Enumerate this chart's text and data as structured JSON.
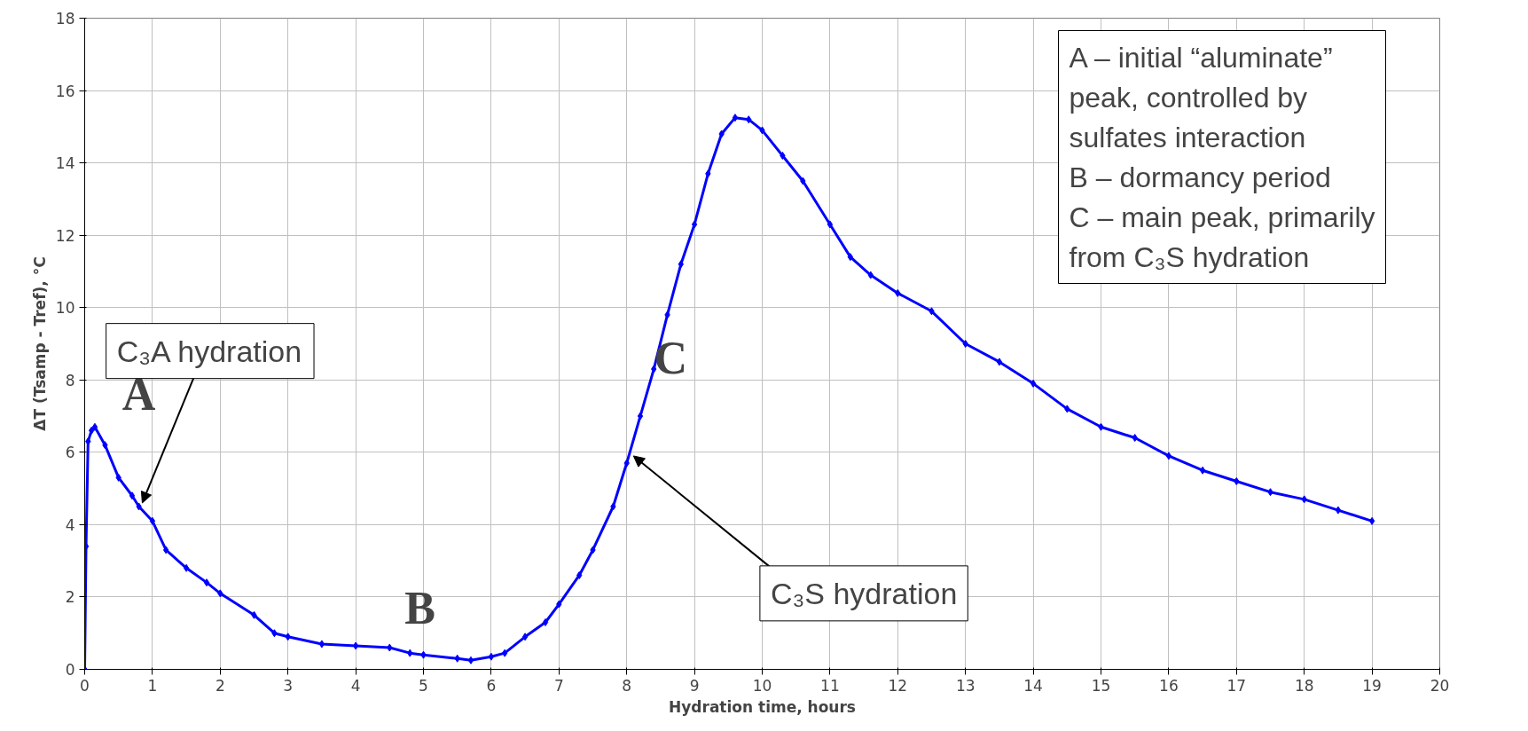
{
  "chart_data": {
    "type": "line",
    "xlabel": "Hydration time, hours",
    "ylabel": "ΔT (Tsamp - Tref), °C",
    "series": [
      {
        "color": "#0000ff",
        "x": [
          0,
          0.02,
          0.05,
          0.1,
          0.15,
          0.3,
          0.5,
          0.7,
          0.8,
          1.0,
          1.2,
          1.5,
          1.8,
          2.0,
          2.5,
          2.8,
          3.0,
          3.5,
          4.0,
          4.5,
          4.8,
          5.0,
          5.5,
          5.7,
          6.0,
          6.2,
          6.5,
          6.8,
          7.0,
          7.3,
          7.5,
          7.8,
          8.0,
          8.2,
          8.4,
          8.6,
          8.8,
          9.0,
          9.2,
          9.4,
          9.6,
          9.8,
          10.0,
          10.3,
          10.6,
          11.0,
          11.3,
          11.6,
          12.0,
          12.5,
          13.0,
          13.5,
          14.0,
          14.5,
          15.0,
          15.5,
          16.0,
          16.5,
          17.0,
          17.5,
          18.0,
          18.5,
          19.0
        ],
        "values": [
          0,
          3.4,
          6.3,
          6.6,
          6.7,
          6.2,
          5.3,
          4.8,
          4.5,
          4.1,
          3.3,
          2.8,
          2.4,
          2.1,
          1.5,
          1.0,
          0.9,
          0.7,
          0.65,
          0.6,
          0.45,
          0.4,
          0.3,
          0.25,
          0.35,
          0.45,
          0.9,
          1.3,
          1.8,
          2.6,
          3.3,
          4.5,
          5.7,
          7.0,
          8.3,
          9.8,
          11.2,
          12.3,
          13.7,
          14.8,
          15.25,
          15.2,
          14.9,
          14.2,
          13.5,
          12.3,
          11.4,
          10.9,
          10.4,
          9.9,
          9.0,
          8.5,
          7.9,
          7.2,
          6.7,
          6.4,
          5.9,
          5.5,
          5.2,
          4.9,
          4.7,
          4.4,
          4.1
        ]
      }
    ],
    "xlim": [
      0,
      20
    ],
    "xticks": [
      0,
      1,
      2,
      3,
      4,
      5,
      6,
      7,
      8,
      9,
      10,
      11,
      12,
      13,
      14,
      15,
      16,
      17,
      18,
      19,
      20
    ],
    "ylim": [
      0,
      18
    ],
    "yticks": [
      0,
      2,
      4,
      6,
      8,
      10,
      12,
      14,
      16,
      18
    ],
    "grid": true,
    "marker": "diamond",
    "line_style": "solid",
    "annotations": [
      "A",
      "B",
      "C",
      {
        "text": "C₃A hydration",
        "x": 0.85,
        "y": 4.6
      },
      {
        "text": "C₃S hydration",
        "x": 8.1,
        "y": 5.9
      },
      "A – initial “aluminate”\npeak, controlled by\nsulfates interaction\nB – dormancy period\nC – main peak, primarily\nfrom C₃S hydration"
    ]
  }
}
